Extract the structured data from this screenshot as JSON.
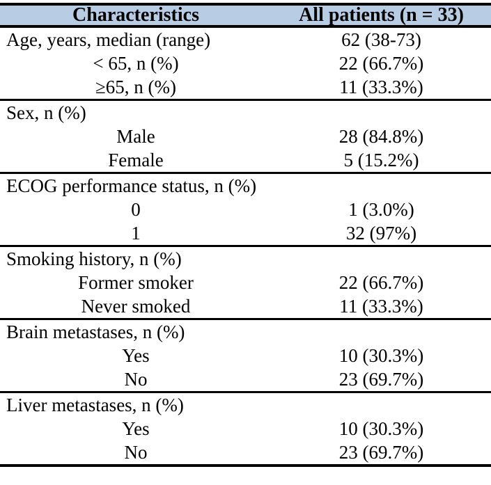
{
  "table": {
    "colors": {
      "header_bg": "#b8cce4",
      "border": "#000000",
      "text": "#000000"
    },
    "header": {
      "col1": "Characteristics",
      "col2": "All patients (n = 33)"
    },
    "sections": [
      {
        "rows": [
          {
            "label": "Age, years, median (range)",
            "value": "62 (38-73)",
            "indent": false
          },
          {
            "label": "< 65, n (%)",
            "value": "22 (66.7%)",
            "indent": true
          },
          {
            "label": "≥65, n (%)",
            "value": "11 (33.3%)",
            "indent": true
          }
        ]
      },
      {
        "rows": [
          {
            "label": "Sex, n (%)",
            "value": "",
            "indent": false
          },
          {
            "label": "Male",
            "value": "28 (84.8%)",
            "indent": true
          },
          {
            "label": "Female",
            "value": "5 (15.2%)",
            "indent": true
          }
        ]
      },
      {
        "rows": [
          {
            "label": "ECOG performance status, n (%)",
            "value": "",
            "indent": false
          },
          {
            "label": "0",
            "value": "1 (3.0%)",
            "indent": true
          },
          {
            "label": "1",
            "value": "32 (97%)",
            "indent": true
          }
        ]
      },
      {
        "rows": [
          {
            "label": "Smoking history, n (%)",
            "value": "",
            "indent": false
          },
          {
            "label": "Former smoker",
            "value": "22 (66.7%)",
            "indent": true
          },
          {
            "label": "Never smoked",
            "value": "11 (33.3%)",
            "indent": true
          }
        ]
      },
      {
        "rows": [
          {
            "label": "Brain metastases, n (%)",
            "value": "",
            "indent": false
          },
          {
            "label": "Yes",
            "value": "10 (30.3%)",
            "indent": true
          },
          {
            "label": "No",
            "value": "23 (69.7%)",
            "indent": true
          }
        ]
      },
      {
        "rows": [
          {
            "label": "Liver metastases, n (%)",
            "value": "",
            "indent": false
          },
          {
            "label": "Yes",
            "value": "10 (30.3%)",
            "indent": true
          },
          {
            "label": "No",
            "value": "23 (69.7%)",
            "indent": true
          }
        ]
      }
    ]
  },
  "chart_data": {
    "type": "table",
    "title": "",
    "columns": [
      "Characteristics",
      "All patients (n = 33)"
    ],
    "rows": [
      [
        "Age, years, median (range)",
        "62 (38-73)"
      ],
      [
        "< 65, n (%)",
        "22 (66.7%)"
      ],
      [
        "≥65, n (%)",
        "11 (33.3%)"
      ],
      [
        "Sex, n (%)",
        ""
      ],
      [
        "Male",
        "28 (84.8%)"
      ],
      [
        "Female",
        "5 (15.2%)"
      ],
      [
        "ECOG performance status, n (%)",
        ""
      ],
      [
        "0",
        "1 (3.0%)"
      ],
      [
        "1",
        "32 (97%)"
      ],
      [
        "Smoking history, n (%)",
        ""
      ],
      [
        "Former smoker",
        "22 (66.7%)"
      ],
      [
        "Never smoked",
        "11 (33.3%)"
      ],
      [
        "Brain metastases, n (%)",
        ""
      ],
      [
        "Yes",
        "10 (30.3%)"
      ],
      [
        "No",
        "23 (69.7%)"
      ],
      [
        "Liver metastases, n (%)",
        ""
      ],
      [
        "Yes",
        "10 (30.3%)"
      ],
      [
        "No",
        "23 (69.7%)"
      ]
    ]
  }
}
